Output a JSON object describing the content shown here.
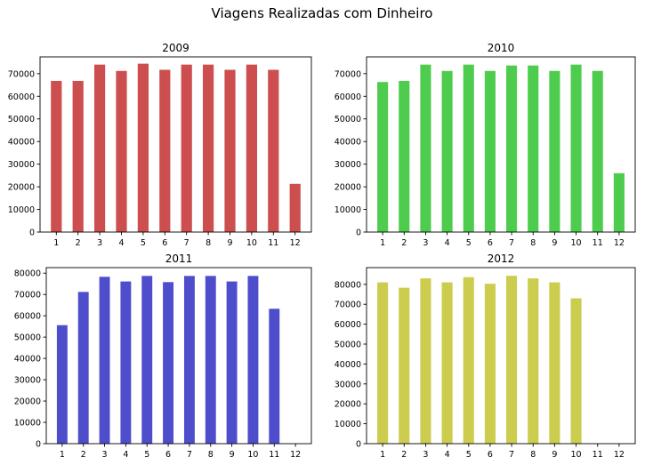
{
  "figure": {
    "title": "Viagens Realizadas com Dinheiro"
  },
  "chart_data": [
    {
      "type": "bar",
      "title": "2009",
      "categories": [
        "1",
        "2",
        "3",
        "4",
        "5",
        "6",
        "7",
        "8",
        "9",
        "10",
        "11",
        "12"
      ],
      "values": [
        66800,
        66800,
        74000,
        71200,
        74400,
        71700,
        74000,
        74000,
        71700,
        74000,
        71700,
        21300
      ],
      "ylim": [
        0,
        77400
      ],
      "yticks": [
        0,
        10000,
        20000,
        30000,
        40000,
        50000,
        60000,
        70000
      ],
      "color": "#cc4e4e",
      "xlabel": "",
      "ylabel": "",
      "grid": false
    },
    {
      "type": "bar",
      "title": "2010",
      "categories": [
        "1",
        "2",
        "3",
        "4",
        "5",
        "6",
        "7",
        "8",
        "9",
        "10",
        "11",
        "12"
      ],
      "values": [
        66300,
        66800,
        74000,
        71200,
        74000,
        71200,
        73600,
        73600,
        71200,
        74000,
        71200,
        26000
      ],
      "ylim": [
        0,
        77400
      ],
      "yticks": [
        0,
        10000,
        20000,
        30000,
        40000,
        50000,
        60000,
        70000
      ],
      "color": "#4ecc4e",
      "xlabel": "",
      "ylabel": "",
      "grid": false
    },
    {
      "type": "bar",
      "title": "2011",
      "categories": [
        "1",
        "2",
        "3",
        "4",
        "5",
        "6",
        "7",
        "8",
        "9",
        "10",
        "11",
        "12"
      ],
      "values": [
        55600,
        71200,
        78300,
        76100,
        78700,
        75800,
        78700,
        78700,
        76100,
        78700,
        63300,
        0
      ],
      "ylim": [
        0,
        82600
      ],
      "yticks": [
        0,
        10000,
        20000,
        30000,
        40000,
        50000,
        60000,
        70000,
        80000
      ],
      "color": "#4e4ecc",
      "xlabel": "",
      "ylabel": "",
      "grid": false
    },
    {
      "type": "bar",
      "title": "2012",
      "categories": [
        "1",
        "2",
        "3",
        "4",
        "5",
        "6",
        "7",
        "8",
        "9",
        "10",
        "11",
        "12"
      ],
      "values": [
        81000,
        78300,
        83000,
        81000,
        83600,
        80300,
        84300,
        83000,
        81000,
        73000,
        0,
        0
      ],
      "ylim": [
        0,
        88400
      ],
      "yticks": [
        0,
        10000,
        20000,
        30000,
        40000,
        50000,
        60000,
        70000,
        80000
      ],
      "color": "#cccc4e",
      "xlabel": "",
      "ylabel": "",
      "grid": false
    }
  ]
}
